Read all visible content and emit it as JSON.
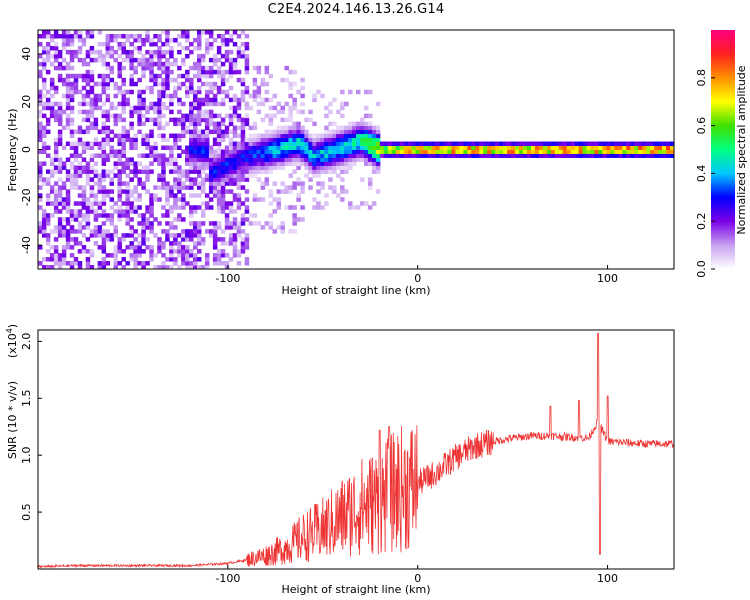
{
  "title": "C2E4.2024.146.13.26.G14",
  "chart_data": [
    {
      "type": "heatmap",
      "xlabel": "Height of straight line (km)",
      "ylabel": "Frequency (Hz)",
      "xlim": [
        -200,
        135
      ],
      "ylim": [
        -50,
        50
      ],
      "xticks": [
        -100,
        0,
        100
      ],
      "yticks": [
        -40,
        -20,
        0,
        20,
        40
      ],
      "colorbar": {
        "label": "Normalized spectral amplitude",
        "range": [
          0,
          1
        ],
        "ticks": [
          "0.0",
          "0.2",
          "0.4",
          "0.6",
          "0.8"
        ],
        "colors": [
          "#ffffff",
          "#c8a0f0",
          "#7a00e6",
          "#0000ff",
          "#00c8ff",
          "#00ff80",
          "#40e000",
          "#ffff00",
          "#ff9000",
          "#ff2020",
          "#ff0080"
        ]
      },
      "ridge": [
        {
          "x": -110,
          "freq": -10,
          "amp": 0.3
        },
        {
          "x": -90,
          "freq": -3,
          "amp": 0.3
        },
        {
          "x": -75,
          "freq": 0,
          "amp": 0.4
        },
        {
          "x": -62,
          "freq": 3,
          "amp": 0.45
        },
        {
          "x": -55,
          "freq": -3,
          "amp": 0.4
        },
        {
          "x": -40,
          "freq": 1,
          "amp": 0.45
        },
        {
          "x": -30,
          "freq": 4,
          "amp": 0.5
        },
        {
          "x": -20,
          "freq": 0,
          "amp": 0.7
        },
        {
          "x": 0,
          "freq": 0,
          "amp": 0.85
        },
        {
          "x": 50,
          "freq": 0,
          "amp": 0.85
        },
        {
          "x": 95,
          "freq": 0,
          "amp": 0.85
        },
        {
          "x": 135,
          "freq": 0,
          "amp": 0.9
        }
      ]
    },
    {
      "type": "line",
      "xlabel": "Height of straight line (km)",
      "ylabel": "SNR (10 * v/v)",
      "ylabel_multiplier": "(x10",
      "ylabel_multiplier_exp": "4",
      "ylabel_multiplier_close": ")",
      "xlim": [
        -200,
        135
      ],
      "ylim": [
        0,
        2.1
      ],
      "xticks": [
        -100,
        0,
        100
      ],
      "yticks": [
        0.5,
        1.0,
        1.5,
        2.0
      ],
      "ytick_labels": [
        "0.5",
        "1.0",
        "1.5",
        "2.0"
      ],
      "color": "#ee3333",
      "series": [
        {
          "x": [
            -200,
            -180,
            -160,
            -140,
            -120,
            -100,
            -90,
            -80,
            -70,
            -60,
            -50,
            -40,
            -30,
            -20,
            -10,
            0,
            10,
            20,
            30,
            40,
            50,
            60,
            70,
            80,
            90,
            95,
            100,
            110,
            120,
            135
          ],
          "values": [
            0.02,
            0.03,
            0.03,
            0.03,
            0.03,
            0.05,
            0.08,
            0.12,
            0.18,
            0.28,
            0.35,
            0.45,
            0.55,
            0.6,
            0.7,
            0.75,
            0.85,
            0.98,
            1.08,
            1.12,
            1.15,
            1.17,
            1.17,
            1.16,
            1.15,
            1.3,
            1.12,
            1.11,
            1.1,
            1.1
          ]
        }
      ],
      "spikes": [
        {
          "x": -20,
          "value": 1.22
        },
        {
          "x": -15,
          "value": 1.25
        },
        {
          "x": 70,
          "value": 1.43
        },
        {
          "x": 85,
          "value": 1.48
        },
        {
          "x": 95,
          "value": 2.07
        },
        {
          "x": 96,
          "value": 0.13
        },
        {
          "x": 100,
          "value": 1.52
        }
      ]
    }
  ]
}
